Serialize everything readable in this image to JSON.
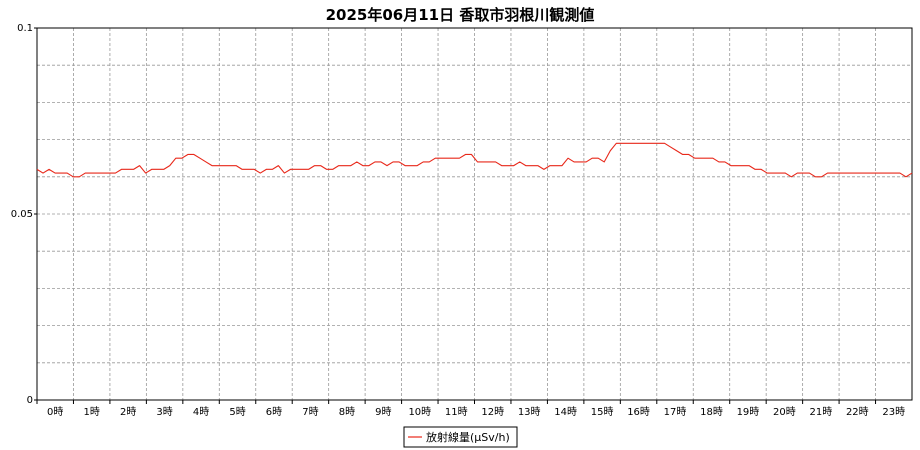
{
  "chart_data": {
    "type": "line",
    "title": "2025年06月11日 香取市羽根川観測値",
    "xlabel": "",
    "ylabel": "",
    "ylim": [
      0,
      0.1
    ],
    "y_ticks": [
      "0",
      "0.05",
      "0.1"
    ],
    "x_ticks": [
      "0時",
      "1時",
      "2時",
      "3時",
      "4時",
      "5時",
      "6時",
      "7時",
      "8時",
      "9時",
      "10時",
      "11時",
      "12時",
      "13時",
      "14時",
      "15時",
      "16時",
      "17時",
      "18時",
      "19時",
      "20時",
      "21時",
      "22時",
      "23時"
    ],
    "grid": true,
    "legend_position": "bottom",
    "line_color": "#e8281a",
    "x_unit": "hours",
    "series": [
      {
        "name": "放射線量(μSv/h)",
        "values": [
          0.062,
          0.061,
          0.062,
          0.061,
          0.061,
          0.061,
          0.06,
          0.06,
          0.061,
          0.061,
          0.061,
          0.061,
          0.061,
          0.061,
          0.062,
          0.062,
          0.062,
          0.063,
          0.061,
          0.062,
          0.062,
          0.062,
          0.063,
          0.065,
          0.065,
          0.066,
          0.066,
          0.065,
          0.064,
          0.063,
          0.063,
          0.063,
          0.063,
          0.063,
          0.062,
          0.062,
          0.062,
          0.061,
          0.062,
          0.062,
          0.063,
          0.061,
          0.062,
          0.062,
          0.062,
          0.062,
          0.063,
          0.063,
          0.062,
          0.062,
          0.063,
          0.063,
          0.063,
          0.064,
          0.063,
          0.063,
          0.064,
          0.064,
          0.063,
          0.064,
          0.064,
          0.063,
          0.063,
          0.063,
          0.064,
          0.064,
          0.065,
          0.065,
          0.065,
          0.065,
          0.065,
          0.066,
          0.066,
          0.064,
          0.064,
          0.064,
          0.064,
          0.063,
          0.063,
          0.063,
          0.064,
          0.063,
          0.063,
          0.063,
          0.062,
          0.063,
          0.063,
          0.063,
          0.065,
          0.064,
          0.064,
          0.064,
          0.065,
          0.065,
          0.064,
          0.067,
          0.069,
          0.069,
          0.069,
          0.069,
          0.069,
          0.069,
          0.069,
          0.069,
          0.069,
          0.068,
          0.067,
          0.066,
          0.066,
          0.065,
          0.065,
          0.065,
          0.065,
          0.064,
          0.064,
          0.063,
          0.063,
          0.063,
          0.063,
          0.062,
          0.062,
          0.061,
          0.061,
          0.061,
          0.061,
          0.06,
          0.061,
          0.061,
          0.061,
          0.06,
          0.06,
          0.061,
          0.061,
          0.061,
          0.061,
          0.061,
          0.061,
          0.061,
          0.061,
          0.061,
          0.061,
          0.061,
          0.061,
          0.061,
          0.06,
          0.061
        ]
      }
    ]
  }
}
